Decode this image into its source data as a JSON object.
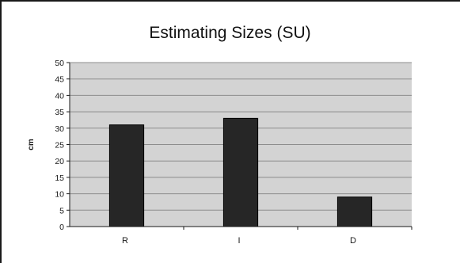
{
  "chart_data": {
    "type": "bar",
    "title": "Estimating Sizes (SU)",
    "xlabel": "",
    "ylabel": "cm",
    "categories": [
      "R",
      "I",
      "D"
    ],
    "values": [
      31,
      33,
      9
    ],
    "ylim": [
      0,
      50
    ],
    "yticks": [
      0,
      5,
      10,
      15,
      20,
      25,
      30,
      35,
      40,
      45,
      50
    ],
    "grid": true,
    "legend": "none",
    "colors": {
      "bar": "#262626",
      "plot_background": "#d3d3d3",
      "grid": "#8c8c8c"
    }
  }
}
